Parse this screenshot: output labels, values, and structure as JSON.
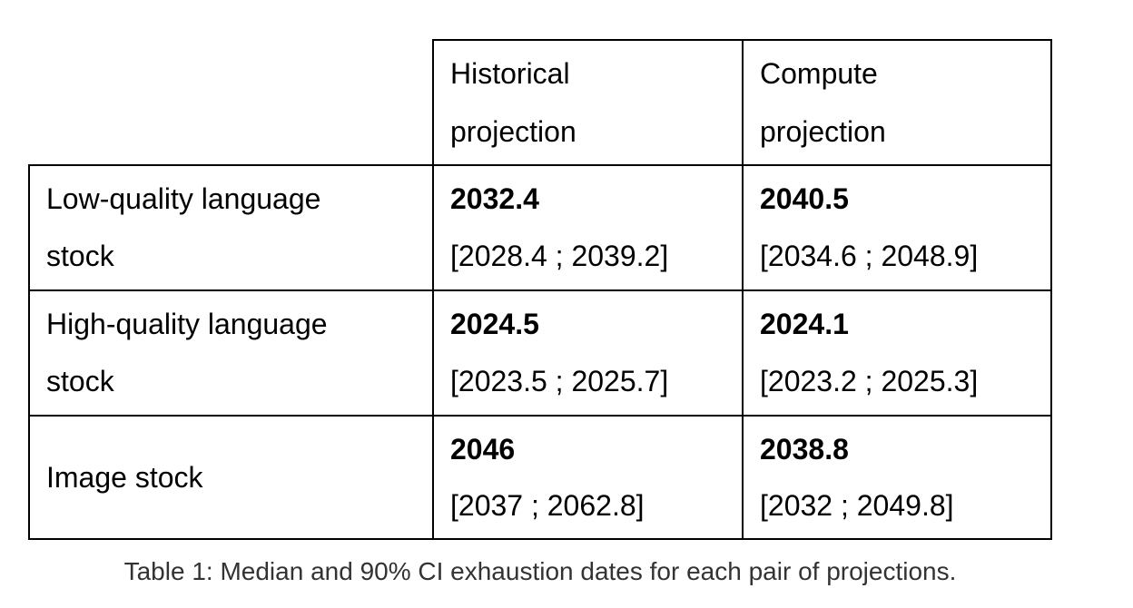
{
  "table": {
    "header": {
      "col1_line1": "Historical",
      "col1_line2": "projection",
      "col2_line1": "Compute",
      "col2_line2": "projection"
    },
    "rows": [
      {
        "label_line1": "Low-quality language",
        "label_line2": "stock",
        "historical_median": "2032.4",
        "historical_ci": "[2028.4 ; 2039.2]",
        "compute_median": "2040.5",
        "compute_ci": "[2034.6 ; 2048.9]"
      },
      {
        "label_line1": "High-quality language",
        "label_line2": "stock",
        "historical_median": "2024.5",
        "historical_ci": "[2023.5 ; 2025.7]",
        "compute_median": "2024.1",
        "compute_ci": "[2023.2 ; 2025.3]"
      },
      {
        "label": "Image stock",
        "historical_median": "2046",
        "historical_ci": "[2037 ; 2062.8]",
        "compute_median": "2038.8",
        "compute_ci": "[2032 ; 2049.8]"
      }
    ]
  },
  "caption": "Table 1: Median and 90% CI exhaustion dates for each pair of projections."
}
